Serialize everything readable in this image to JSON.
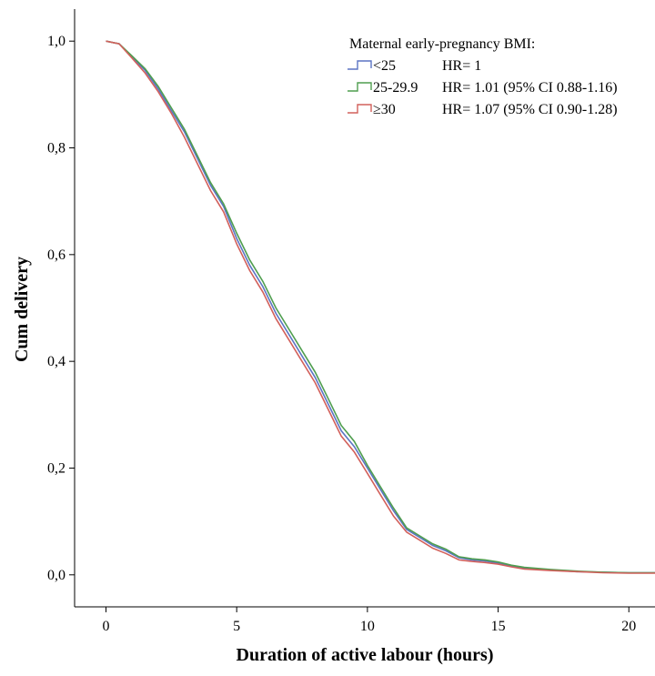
{
  "chart_data": {
    "type": "line",
    "title": "",
    "xlabel": "Duration of active labour (hours)",
    "ylabel": "Cum delivery",
    "xlim": [
      -1.2,
      21
    ],
    "ylim": [
      -0.06,
      1.06
    ],
    "xticks": [
      0,
      5,
      10,
      15,
      20
    ],
    "xtick_labels": [
      "0",
      "5",
      "10",
      "15",
      "20"
    ],
    "yticks": [
      0.0,
      0.2,
      0.4,
      0.6,
      0.8,
      1.0
    ],
    "ytick_labels": [
      "0,0",
      "0,2",
      "0,4",
      "0,6",
      "0,8",
      "1,0"
    ],
    "grid": false,
    "legend": {
      "title": "Maternal early-pregnancy BMI:",
      "position": "top-right"
    },
    "series": [
      {
        "name": "<25",
        "hr_text": "HR= 1",
        "color": "#5b74c4",
        "x": [
          0,
          0.5,
          1.0,
          1.5,
          2.0,
          2.5,
          3.0,
          3.5,
          4.0,
          4.5,
          5.0,
          5.5,
          6.0,
          6.5,
          7.0,
          7.5,
          8.0,
          8.5,
          9.0,
          9.5,
          10.0,
          10.5,
          11.0,
          11.5,
          12.0,
          12.5,
          13.0,
          13.5,
          14.0,
          14.5,
          15.0,
          15.5,
          16.0,
          17.0,
          18.0,
          19.0,
          20.0,
          21.0
        ],
        "y": [
          1.0,
          0.995,
          0.97,
          0.945,
          0.91,
          0.87,
          0.83,
          0.78,
          0.73,
          0.69,
          0.63,
          0.58,
          0.54,
          0.49,
          0.45,
          0.41,
          0.37,
          0.32,
          0.27,
          0.24,
          0.2,
          0.16,
          0.12,
          0.085,
          0.07,
          0.055,
          0.045,
          0.032,
          0.028,
          0.026,
          0.022,
          0.017,
          0.013,
          0.009,
          0.006,
          0.005,
          0.004,
          0.004
        ]
      },
      {
        "name": "25-29.9",
        "hr_text": "HR= 1.01 (95% CI 0.88-1.16)",
        "color": "#4f9e4f",
        "x": [
          0,
          0.5,
          1.0,
          1.5,
          2.0,
          2.5,
          3.0,
          3.5,
          4.0,
          4.5,
          5.0,
          5.5,
          6.0,
          6.5,
          7.0,
          7.5,
          8.0,
          8.5,
          9.0,
          9.5,
          10.0,
          10.5,
          11.0,
          11.5,
          12.0,
          12.5,
          13.0,
          13.5,
          14.0,
          14.5,
          15.0,
          15.5,
          16.0,
          17.0,
          18.0,
          19.0,
          20.0,
          21.0
        ],
        "y": [
          1.0,
          0.995,
          0.972,
          0.948,
          0.915,
          0.875,
          0.835,
          0.785,
          0.735,
          0.695,
          0.64,
          0.59,
          0.55,
          0.5,
          0.46,
          0.42,
          0.38,
          0.33,
          0.28,
          0.25,
          0.205,
          0.165,
          0.125,
          0.088,
          0.073,
          0.058,
          0.048,
          0.034,
          0.03,
          0.028,
          0.024,
          0.018,
          0.014,
          0.01,
          0.007,
          0.005,
          0.004,
          0.004
        ]
      },
      {
        "name": "≥30",
        "hr_text": "HR= 1.07 (95% CI 0.90-1.28)",
        "color": "#d2605b",
        "x": [
          0,
          0.5,
          1.0,
          1.5,
          2.0,
          2.5,
          3.0,
          3.5,
          4.0,
          4.5,
          5.0,
          5.5,
          6.0,
          6.5,
          7.0,
          7.5,
          8.0,
          8.5,
          9.0,
          9.5,
          10.0,
          10.5,
          11.0,
          11.5,
          12.0,
          12.5,
          13.0,
          13.5,
          14.0,
          14.5,
          15.0,
          15.5,
          16.0,
          17.0,
          18.0,
          19.0,
          20.0,
          21.0
        ],
        "y": [
          1.0,
          0.995,
          0.968,
          0.94,
          0.905,
          0.865,
          0.82,
          0.77,
          0.72,
          0.68,
          0.62,
          0.57,
          0.53,
          0.48,
          0.44,
          0.4,
          0.36,
          0.31,
          0.26,
          0.23,
          0.19,
          0.15,
          0.11,
          0.08,
          0.065,
          0.05,
          0.04,
          0.028,
          0.025,
          0.023,
          0.02,
          0.015,
          0.011,
          0.008,
          0.006,
          0.004,
          0.003,
          0.003
        ]
      }
    ]
  }
}
